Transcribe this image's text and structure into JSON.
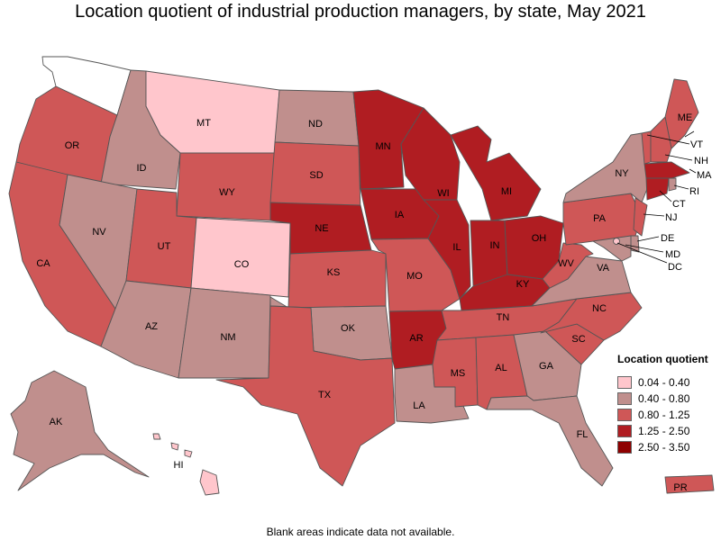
{
  "title": "Location quotient of industrial production managers, by state, May 2021",
  "footnote": "Blank areas indicate data not available.",
  "legend": {
    "title": "Location quotient",
    "items": [
      {
        "label": "0.04 - 0.40",
        "color": "#ffc6cc"
      },
      {
        "label": "0.40 - 0.80",
        "color": "#c08f8d"
      },
      {
        "label": "0.80 - 1.25",
        "color": "#cf5757"
      },
      {
        "label": "1.25 - 2.50",
        "color": "#b01d22"
      },
      {
        "label": "2.50 - 3.50",
        "color": "#8e0000"
      }
    ]
  },
  "no_data_color": "#ffffff",
  "states": [
    {
      "code": "WA",
      "category": "none"
    },
    {
      "code": "OR",
      "category": "0.80 - 1.25"
    },
    {
      "code": "CA",
      "category": "0.80 - 1.25"
    },
    {
      "code": "ID",
      "category": "0.40 - 0.80"
    },
    {
      "code": "NV",
      "category": "0.40 - 0.80"
    },
    {
      "code": "MT",
      "category": "0.04 - 0.40"
    },
    {
      "code": "WY",
      "category": "0.80 - 1.25"
    },
    {
      "code": "UT",
      "category": "0.80 - 1.25"
    },
    {
      "code": "CO",
      "category": "0.04 - 0.40"
    },
    {
      "code": "AZ",
      "category": "0.40 - 0.80"
    },
    {
      "code": "NM",
      "category": "0.40 - 0.80"
    },
    {
      "code": "ND",
      "category": "0.40 - 0.80"
    },
    {
      "code": "SD",
      "category": "0.80 - 1.25"
    },
    {
      "code": "NE",
      "category": "1.25 - 2.50"
    },
    {
      "code": "KS",
      "category": "0.80 - 1.25"
    },
    {
      "code": "OK",
      "category": "0.40 - 0.80"
    },
    {
      "code": "TX",
      "category": "0.80 - 1.25"
    },
    {
      "code": "MN",
      "category": "1.25 - 2.50"
    },
    {
      "code": "IA",
      "category": "1.25 - 2.50"
    },
    {
      "code": "MO",
      "category": "0.80 - 1.25"
    },
    {
      "code": "AR",
      "category": "1.25 - 2.50"
    },
    {
      "code": "LA",
      "category": "0.40 - 0.80"
    },
    {
      "code": "WI",
      "category": "1.25 - 2.50"
    },
    {
      "code": "IL",
      "category": "1.25 - 2.50"
    },
    {
      "code": "MI",
      "category": "1.25 - 2.50"
    },
    {
      "code": "IN",
      "category": "1.25 - 2.50"
    },
    {
      "code": "OH",
      "category": "1.25 - 2.50"
    },
    {
      "code": "KY",
      "category": "1.25 - 2.50"
    },
    {
      "code": "TN",
      "category": "0.80 - 1.25"
    },
    {
      "code": "MS",
      "category": "0.80 - 1.25"
    },
    {
      "code": "AL",
      "category": "0.80 - 1.25"
    },
    {
      "code": "GA",
      "category": "0.40 - 0.80"
    },
    {
      "code": "FL",
      "category": "0.40 - 0.80"
    },
    {
      "code": "SC",
      "category": "0.80 - 1.25"
    },
    {
      "code": "NC",
      "category": "0.80 - 1.25"
    },
    {
      "code": "VA",
      "category": "0.40 - 0.80"
    },
    {
      "code": "WV",
      "category": "0.80 - 1.25"
    },
    {
      "code": "PA",
      "category": "0.80 - 1.25"
    },
    {
      "code": "NY",
      "category": "0.40 - 0.80"
    },
    {
      "code": "ME",
      "category": "0.80 - 1.25"
    },
    {
      "code": "VT",
      "category": "0.80 - 1.25"
    },
    {
      "code": "NH",
      "category": "0.80 - 1.25"
    },
    {
      "code": "MA",
      "category": "1.25 - 2.50"
    },
    {
      "code": "RI",
      "category": "0.40 - 0.80"
    },
    {
      "code": "CT",
      "category": "1.25 - 2.50"
    },
    {
      "code": "NJ",
      "category": "0.80 - 1.25"
    },
    {
      "code": "DE",
      "category": "0.40 - 0.80"
    },
    {
      "code": "MD",
      "category": "0.40 - 0.80"
    },
    {
      "code": "DC",
      "category": "0.04 - 0.40"
    },
    {
      "code": "AK",
      "category": "0.40 - 0.80"
    },
    {
      "code": "HI",
      "category": "0.04 - 0.40"
    },
    {
      "code": "PR",
      "category": "0.80 - 1.25"
    }
  ]
}
